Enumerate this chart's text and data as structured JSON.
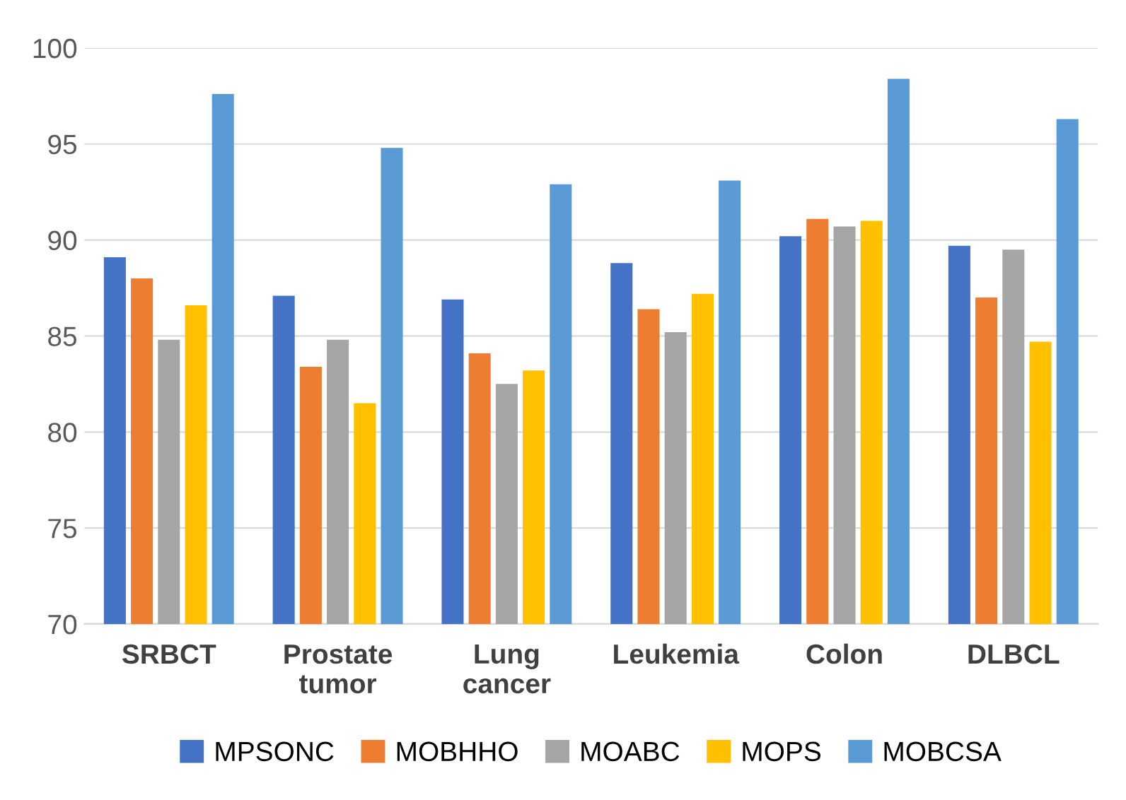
{
  "chart_data": {
    "type": "bar",
    "categories": [
      "SRBCT",
      "Prostate\ntumor",
      "Lung\ncancer",
      "Leukemia",
      "Colon",
      "DLBCL"
    ],
    "series": [
      {
        "name": "MPSONC",
        "color": "#4472c4",
        "values": [
          89.1,
          87.1,
          86.9,
          88.8,
          90.2,
          89.7
        ]
      },
      {
        "name": "MOBHHO",
        "color": "#ed7d31",
        "values": [
          88.0,
          83.4,
          84.1,
          86.4,
          91.1,
          87.0
        ]
      },
      {
        "name": "MOABC",
        "color": "#a5a5a5",
        "values": [
          84.8,
          84.8,
          82.5,
          85.2,
          90.7,
          89.5
        ]
      },
      {
        "name": "MOPS",
        "color": "#ffc000",
        "values": [
          86.6,
          81.5,
          83.2,
          87.2,
          91.0,
          84.7
        ]
      },
      {
        "name": "MOBCSA",
        "color": "#5b9bd5",
        "values": [
          97.6,
          94.8,
          92.9,
          93.1,
          98.4,
          96.3
        ]
      }
    ],
    "ylim": [
      70,
      100
    ],
    "yticks": [
      70,
      75,
      80,
      85,
      90,
      95,
      100
    ],
    "grid": "y",
    "legend": "bottom"
  }
}
